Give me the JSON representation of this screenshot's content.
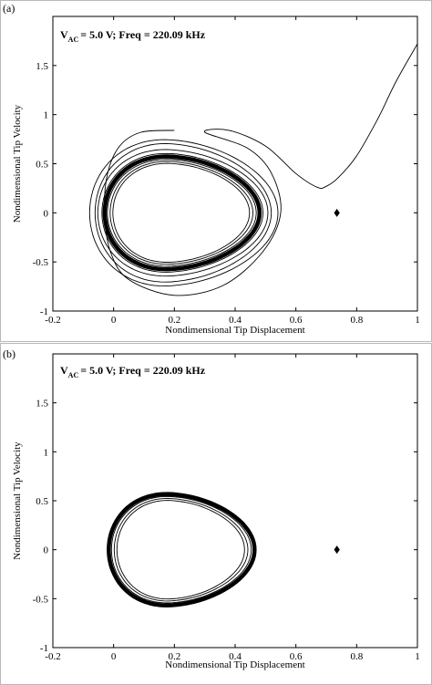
{
  "chart_data": [
    {
      "panel_label": "(a)",
      "type": "line",
      "annotation": {
        "main": "V",
        "sub": "AC",
        "rest": "= 5.0 V; Freq = 220.09 kHz"
      },
      "xlabel": "Nondimensional Tip Displacement",
      "ylabel": "Nondimensional Tip Velocity",
      "xlim": [
        -0.2,
        1.0
      ],
      "ylim": [
        -1.0,
        2.0
      ],
      "xticks": [
        -0.2,
        0,
        0.2,
        0.4,
        0.6,
        0.8,
        1
      ],
      "xtick_labels": [
        "-0.2",
        "0",
        "0.2",
        "0.4",
        "0.6",
        "0.8",
        "1"
      ],
      "yticks": [
        -1,
        -0.5,
        0,
        0.5,
        1,
        1.5
      ],
      "ytick_labels": [
        "-1",
        "-0.5",
        "0",
        "0.5",
        "1",
        "1.5"
      ],
      "grid": false,
      "series": [
        {
          "kind": "escape-trajectory",
          "values": [
            [
              0.2,
              0.84
            ],
            [
              0.09,
              0.82
            ],
            [
              0.02,
              0.68
            ],
            [
              -0.02,
              0.4
            ],
            [
              -0.03,
              0.0
            ],
            [
              -0.01,
              -0.4
            ],
            [
              0.05,
              -0.68
            ],
            [
              0.2,
              -0.84
            ],
            [
              0.36,
              -0.74
            ],
            [
              0.49,
              -0.4
            ],
            [
              0.55,
              0.0
            ],
            [
              0.52,
              0.4
            ],
            [
              0.44,
              0.66
            ],
            [
              0.3,
              0.82
            ],
            [
              0.38,
              0.84
            ],
            [
              0.5,
              0.68
            ],
            [
              0.6,
              0.4
            ],
            [
              0.67,
              0.26
            ],
            [
              0.7,
              0.27
            ],
            [
              0.74,
              0.36
            ],
            [
              0.8,
              0.58
            ],
            [
              0.87,
              0.96
            ],
            [
              0.93,
              1.34
            ],
            [
              1.0,
              1.72
            ]
          ]
        },
        {
          "kind": "orbit",
          "center": [
            0.2,
            0.0
          ],
          "rx": 0.31,
          "ry": 0.74,
          "right_bias": 0.1
        },
        {
          "kind": "orbit",
          "center": [
            0.2,
            0.0
          ],
          "rx": 0.29,
          "ry": 0.7,
          "right_bias": 0.1
        },
        {
          "kind": "orbit",
          "center": [
            0.2,
            0.0
          ],
          "rx": 0.28,
          "ry": 0.64,
          "right_bias": 0.1
        },
        {
          "kind": "orbit",
          "center": [
            0.2,
            0.0
          ],
          "rx": 0.265,
          "ry": 0.6,
          "right_bias": 0.1
        },
        {
          "kind": "orbit",
          "center": [
            0.2,
            0.0
          ],
          "rx": 0.26,
          "ry": 0.585,
          "right_bias": 0.1
        },
        {
          "kind": "orbit",
          "center": [
            0.2,
            0.0
          ],
          "rx": 0.255,
          "ry": 0.57,
          "right_bias": 0.1,
          "bold": true
        },
        {
          "kind": "orbit",
          "center": [
            0.2,
            0.0
          ],
          "rx": 0.245,
          "ry": 0.54,
          "right_bias": 0.1
        },
        {
          "kind": "orbit",
          "center": [
            0.2,
            0.0
          ],
          "rx": 0.235,
          "ry": 0.52,
          "right_bias": 0.1
        },
        {
          "kind": "orbit",
          "center": [
            0.2,
            0.0
          ],
          "rx": 0.225,
          "ry": 0.5,
          "right_bias": 0.1
        }
      ],
      "marker": {
        "x": 0.735,
        "y": 0.0,
        "shape": "diamond"
      }
    },
    {
      "panel_label": "(b)",
      "type": "line",
      "annotation": {
        "main": "V",
        "sub": "AC",
        "rest": "= 5.0 V; Freq = 220.09 kHz"
      },
      "xlabel": "Nondimensional Tip Displacement",
      "ylabel": "Nondimensional Tip Velocity",
      "xlim": [
        -0.2,
        1.0
      ],
      "ylim": [
        -1.0,
        2.0
      ],
      "xticks": [
        -0.2,
        0,
        0.2,
        0.4,
        0.6,
        0.8,
        1
      ],
      "xtick_labels": [
        "-0.2",
        "0",
        "0.2",
        "0.4",
        "0.6",
        "0.8",
        "1"
      ],
      "yticks": [
        -1,
        -0.5,
        0,
        0.5,
        1,
        1.5
      ],
      "ytick_labels": [
        "-1",
        "-0.5",
        "0",
        "0.5",
        "1",
        "1.5"
      ],
      "grid": false,
      "series": [
        {
          "kind": "orbit",
          "center": [
            0.2,
            0.0
          ],
          "rx": 0.24,
          "ry": 0.565,
          "right_bias": 0.1,
          "bold": true
        },
        {
          "kind": "orbit",
          "center": [
            0.2,
            0.0
          ],
          "rx": 0.23,
          "ry": 0.54,
          "right_bias": 0.1
        },
        {
          "kind": "orbit",
          "center": [
            0.2,
            0.0
          ],
          "rx": 0.22,
          "ry": 0.52,
          "right_bias": 0.1
        },
        {
          "kind": "orbit",
          "center": [
            0.2,
            0.0
          ],
          "rx": 0.21,
          "ry": 0.5,
          "right_bias": 0.1
        }
      ],
      "marker": {
        "x": 0.735,
        "y": 0.0,
        "shape": "diamond"
      }
    }
  ]
}
